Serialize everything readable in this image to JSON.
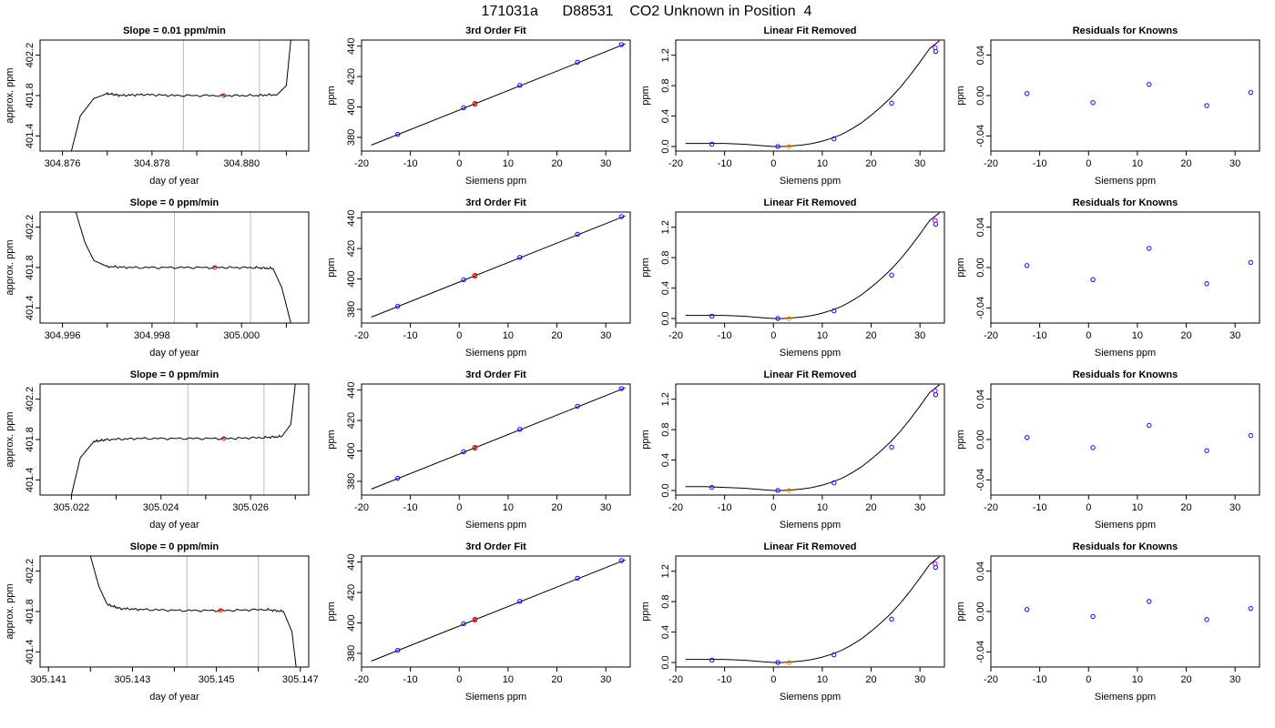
{
  "figure_title": "171031a      D88531    CO2 Unknown in Position  4",
  "colors": {
    "known": "#0000ff",
    "highlight": "#9900ff",
    "unknown": "#ff0000",
    "unknown_lin": "#ff8800",
    "curve": "#000000",
    "vline": "#bbbbbb"
  },
  "chart_data": [
    {
      "type": "line",
      "panel": "trace",
      "row": 0,
      "title": "Slope =  0.01  ppm/min",
      "xlabel": "day of year",
      "ylabel": "approx. ppm",
      "xlim": [
        304.8755,
        304.8815
      ],
      "ylim": [
        401.25,
        402.35
      ],
      "xticks": [
        304.876,
        304.878,
        304.88
      ],
      "xtick_labels": [
        "304.876",
        "304.878",
        "304.880"
      ],
      "xminor": [
        304.877,
        304.879,
        304.881
      ],
      "yticks": [
        401.4,
        401.8,
        402.2
      ],
      "ytick_labels": [
        "401.4",
        "401.8",
        "402.2"
      ],
      "vlines": [
        304.8787,
        304.8804
      ],
      "point": {
        "x": 304.8796,
        "y": 401.8
      },
      "x": [
        304.8762,
        304.8764,
        304.8767,
        304.877,
        304.8773,
        304.8778,
        304.8785,
        304.8795,
        304.8803,
        304.8808,
        304.881,
        304.8811
      ],
      "y": [
        401.25,
        401.6,
        401.77,
        401.82,
        401.8,
        401.81,
        401.8,
        401.8,
        401.8,
        401.81,
        401.9,
        402.35
      ]
    },
    {
      "type": "line",
      "panel": "trace",
      "row": 1,
      "title": "Slope =  0  ppm/min",
      "xlabel": "day of year",
      "ylabel": "approx. ppm",
      "xlim": [
        304.9955,
        305.0015
      ],
      "ylim": [
        401.25,
        402.35
      ],
      "xticks": [
        304.996,
        304.998,
        305.0
      ],
      "xtick_labels": [
        "304.996",
        "304.998",
        "305.000"
      ],
      "xminor": [
        304.997,
        304.999,
        305.001
      ],
      "yticks": [
        401.4,
        401.8,
        402.2
      ],
      "ytick_labels": [
        "401.4",
        "401.8",
        "402.2"
      ],
      "vlines": [
        304.9985,
        305.0002
      ],
      "point": {
        "x": 304.9994,
        "y": 401.8
      },
      "x": [
        304.9963,
        304.9965,
        304.9967,
        304.997,
        304.9975,
        304.9985,
        304.9995,
        305.0003,
        305.0007,
        305.0009,
        305.0011
      ],
      "y": [
        402.35,
        402.05,
        401.87,
        401.81,
        401.8,
        401.8,
        401.8,
        401.8,
        401.79,
        401.6,
        401.25
      ]
    },
    {
      "type": "line",
      "panel": "trace",
      "row": 2,
      "title": "Slope =  0  ppm/min",
      "xlabel": "day of year",
      "ylabel": "approx. ppm",
      "xlim": [
        305.0213,
        305.0273
      ],
      "ylim": [
        401.25,
        402.35
      ],
      "xticks": [
        305.022,
        305.024,
        305.026
      ],
      "xtick_labels": [
        "305.022",
        "305.024",
        "305.026"
      ],
      "xminor": [
        305.023,
        305.025,
        305.027
      ],
      "yticks": [
        401.4,
        401.8,
        402.2
      ],
      "ytick_labels": [
        "401.4",
        "401.8",
        "402.2"
      ],
      "vlines": [
        305.0246,
        305.0263
      ],
      "point": {
        "x": 305.0254,
        "y": 401.81
      },
      "x": [
        305.022,
        305.0222,
        305.0225,
        305.0228,
        305.0235,
        305.0245,
        305.0255,
        305.0263,
        305.0267,
        305.0269,
        305.027
      ],
      "y": [
        401.25,
        401.62,
        401.78,
        401.8,
        401.81,
        401.81,
        401.81,
        401.82,
        401.83,
        401.95,
        402.35
      ]
    },
    {
      "type": "line",
      "panel": "trace",
      "row": 3,
      "title": "Slope =  0  ppm/min",
      "xlabel": "day of year",
      "ylabel": "approx. ppm",
      "xlim": [
        305.1408,
        305.1472
      ],
      "ylim": [
        401.25,
        402.35
      ],
      "xticks": [
        305.141,
        305.143,
        305.145,
        305.147
      ],
      "xtick_labels": [
        "305.141",
        "305.143",
        "305.145",
        "305.147"
      ],
      "xminor": [
        305.142,
        305.144,
        305.146
      ],
      "yticks": [
        401.4,
        401.8,
        402.2
      ],
      "ytick_labels": [
        "401.4",
        "401.8",
        "402.2"
      ],
      "vlines": [
        305.1443,
        305.146
      ],
      "point": {
        "x": 305.1451,
        "y": 401.81
      },
      "x": [
        305.142,
        305.1422,
        305.1424,
        305.1427,
        305.1432,
        305.1442,
        305.1452,
        305.1462,
        305.1466,
        305.1468,
        305.1469
      ],
      "y": [
        402.35,
        402.05,
        401.87,
        401.83,
        401.82,
        401.81,
        401.81,
        401.82,
        401.8,
        401.6,
        401.25
      ]
    },
    {
      "type": "scatter",
      "panel": "fit3",
      "row": 0,
      "title": "3rd Order Fit",
      "xlabel": "Siemens ppm",
      "ylabel": "ppm",
      "xlim": [
        -20,
        35
      ],
      "ylim": [
        371,
        444
      ],
      "xticks": [
        -20,
        -10,
        0,
        10,
        20,
        30
      ],
      "yticks": [
        380,
        400,
        420,
        440
      ],
      "line": {
        "x": [
          -18,
          34
        ],
        "y": [
          374.9,
          441.5
        ]
      },
      "known": {
        "x": [
          -12.6,
          0.9,
          12.4,
          24.2,
          33.2
        ],
        "y": [
          382.0,
          399.5,
          414.2,
          429.4,
          441.0
        ]
      },
      "unknown": {
        "x": [
          3.2,
          3.2
        ],
        "y": [
          402.4,
          401.8
        ]
      }
    },
    {
      "type": "scatter",
      "panel": "fit3",
      "row": 1,
      "title": "3rd Order Fit",
      "xlabel": "Siemens ppm",
      "ylabel": "ppm",
      "xlim": [
        -20,
        35
      ],
      "ylim": [
        371,
        444
      ],
      "xticks": [
        -20,
        -10,
        0,
        10,
        20,
        30
      ],
      "yticks": [
        380,
        400,
        420,
        440
      ],
      "line": {
        "x": [
          -18,
          34
        ],
        "y": [
          374.9,
          441.5
        ]
      },
      "known": {
        "x": [
          -12.6,
          0.9,
          12.4,
          24.2,
          33.2
        ],
        "y": [
          382.0,
          399.5,
          414.2,
          429.4,
          441.0
        ]
      },
      "unknown": {
        "x": [
          3.2,
          3.2
        ],
        "y": [
          402.4,
          401.8
        ]
      }
    },
    {
      "type": "scatter",
      "panel": "fit3",
      "row": 2,
      "title": "3rd Order Fit",
      "xlabel": "Siemens ppm",
      "ylabel": "ppm",
      "xlim": [
        -20,
        35
      ],
      "ylim": [
        371,
        444
      ],
      "xticks": [
        -20,
        -10,
        0,
        10,
        20,
        30
      ],
      "yticks": [
        380,
        400,
        420,
        440
      ],
      "line": {
        "x": [
          -18,
          34
        ],
        "y": [
          374.9,
          441.5
        ]
      },
      "known": {
        "x": [
          -12.6,
          0.9,
          12.4,
          24.2,
          33.2
        ],
        "y": [
          382.0,
          399.5,
          414.2,
          429.4,
          441.0
        ]
      },
      "unknown": {
        "x": [
          3.2,
          3.2
        ],
        "y": [
          402.4,
          401.8
        ]
      }
    },
    {
      "type": "scatter",
      "panel": "fit3",
      "row": 3,
      "title": "3rd Order Fit",
      "xlabel": "Siemens ppm",
      "ylabel": "ppm",
      "xlim": [
        -20,
        35
      ],
      "ylim": [
        371,
        444
      ],
      "xticks": [
        -20,
        -10,
        0,
        10,
        20,
        30
      ],
      "yticks": [
        380,
        400,
        420,
        440
      ],
      "line": {
        "x": [
          -18,
          34
        ],
        "y": [
          374.9,
          441.5
        ]
      },
      "known": {
        "x": [
          -12.6,
          0.9,
          12.4,
          24.2,
          33.2
        ],
        "y": [
          382.0,
          399.5,
          414.2,
          429.4,
          441.0
        ]
      },
      "unknown": {
        "x": [
          3.2,
          3.2
        ],
        "y": [
          402.4,
          401.8
        ]
      }
    },
    {
      "type": "scatter",
      "panel": "linres",
      "row": 0,
      "title": "Linear Fit Removed",
      "xlabel": "Siemens ppm",
      "ylabel": "ppm",
      "xlim": [
        -20,
        35
      ],
      "ylim": [
        -0.06,
        1.4
      ],
      "xticks": [
        -20,
        -10,
        0,
        10,
        20,
        30
      ],
      "yticks": [
        0.0,
        0.4,
        0.8,
        1.2
      ],
      "ytick_labels": [
        "0.0",
        "0.4",
        "0.8",
        "1.2"
      ],
      "curve": {
        "x": [
          -18,
          -14,
          -10,
          -6,
          -2,
          0,
          2,
          4,
          6,
          8,
          10,
          12,
          14,
          16,
          18,
          20,
          22,
          24,
          26,
          28,
          30,
          32,
          34
        ],
        "y": [
          0.04,
          0.04,
          0.04,
          0.03,
          0.01,
          0.0,
          0.0,
          0.01,
          0.02,
          0.04,
          0.07,
          0.11,
          0.16,
          0.23,
          0.31,
          0.41,
          0.52,
          0.64,
          0.78,
          0.94,
          1.11,
          1.29,
          1.39
        ]
      },
      "known": {
        "x": [
          -12.6,
          0.9,
          12.4,
          24.2,
          33.2
        ],
        "y": [
          0.03,
          0.0,
          0.1,
          0.57,
          1.25
        ]
      },
      "highlight": {
        "x": [
          33.1
        ],
        "y": [
          1.3
        ]
      },
      "unknown": {
        "x": [
          3.2
        ],
        "y": [
          0.0
        ]
      }
    },
    {
      "type": "scatter",
      "panel": "linres",
      "row": 1,
      "title": "Linear Fit Removed",
      "xlabel": "Siemens ppm",
      "ylabel": "ppm",
      "xlim": [
        -20,
        35
      ],
      "ylim": [
        -0.06,
        1.4
      ],
      "xticks": [
        -20,
        -10,
        0,
        10,
        20,
        30
      ],
      "yticks": [
        0.0,
        0.4,
        0.8,
        1.2
      ],
      "ytick_labels": [
        "0.0",
        "0.4",
        "0.8",
        "1.2"
      ],
      "curve": {
        "x": [
          -18,
          -14,
          -10,
          -6,
          -2,
          0,
          2,
          4,
          6,
          8,
          10,
          12,
          14,
          16,
          18,
          20,
          22,
          24,
          26,
          28,
          30,
          32,
          34
        ],
        "y": [
          0.04,
          0.04,
          0.04,
          0.03,
          0.01,
          0.0,
          0.0,
          0.01,
          0.02,
          0.04,
          0.07,
          0.11,
          0.16,
          0.23,
          0.31,
          0.41,
          0.52,
          0.64,
          0.78,
          0.94,
          1.11,
          1.29,
          1.39
        ]
      },
      "known": {
        "x": [
          -12.6,
          0.9,
          12.4,
          24.2,
          33.2
        ],
        "y": [
          0.03,
          0.0,
          0.1,
          0.57,
          1.24
        ]
      },
      "highlight": {
        "x": [
          33.1
        ],
        "y": [
          1.29
        ]
      },
      "unknown": {
        "x": [
          3.2
        ],
        "y": [
          0.0
        ]
      }
    },
    {
      "type": "scatter",
      "panel": "linres",
      "row": 2,
      "title": "Linear Fit Removed",
      "xlabel": "Siemens ppm",
      "ylabel": "ppm",
      "xlim": [
        -20,
        35
      ],
      "ylim": [
        -0.06,
        1.4
      ],
      "xticks": [
        -20,
        -10,
        0,
        10,
        20,
        30
      ],
      "yticks": [
        0.0,
        0.4,
        0.8,
        1.2
      ],
      "ytick_labels": [
        "0.0",
        "0.4",
        "0.8",
        "1.2"
      ],
      "curve": {
        "x": [
          -18,
          -14,
          -10,
          -6,
          -2,
          0,
          2,
          4,
          6,
          8,
          10,
          12,
          14,
          16,
          18,
          20,
          22,
          24,
          26,
          28,
          30,
          32,
          34
        ],
        "y": [
          0.05,
          0.05,
          0.04,
          0.03,
          0.01,
          0.0,
          0.0,
          0.01,
          0.02,
          0.04,
          0.07,
          0.11,
          0.16,
          0.23,
          0.31,
          0.41,
          0.52,
          0.64,
          0.78,
          0.94,
          1.11,
          1.29,
          1.39
        ]
      },
      "known": {
        "x": [
          -12.6,
          0.9,
          12.4,
          24.2,
          33.2
        ],
        "y": [
          0.04,
          0.0,
          0.1,
          0.57,
          1.26
        ]
      },
      "highlight": {
        "x": [
          33.1
        ],
        "y": [
          1.31
        ]
      },
      "unknown": {
        "x": [
          3.2
        ],
        "y": [
          0.0
        ]
      }
    },
    {
      "type": "scatter",
      "panel": "linres",
      "row": 3,
      "title": "Linear Fit Removed",
      "xlabel": "Siemens ppm",
      "ylabel": "ppm",
      "xlim": [
        -20,
        35
      ],
      "ylim": [
        -0.06,
        1.4
      ],
      "xticks": [
        -20,
        -10,
        0,
        10,
        20,
        30
      ],
      "yticks": [
        0.0,
        0.4,
        0.8,
        1.2
      ],
      "ytick_labels": [
        "0.0",
        "0.4",
        "0.8",
        "1.2"
      ],
      "curve": {
        "x": [
          -18,
          -14,
          -10,
          -6,
          -2,
          0,
          2,
          4,
          6,
          8,
          10,
          12,
          14,
          16,
          18,
          20,
          22,
          24,
          26,
          28,
          30,
          32,
          34
        ],
        "y": [
          0.04,
          0.04,
          0.04,
          0.03,
          0.01,
          0.0,
          0.0,
          0.01,
          0.02,
          0.04,
          0.07,
          0.11,
          0.16,
          0.23,
          0.31,
          0.41,
          0.52,
          0.64,
          0.78,
          0.94,
          1.11,
          1.29,
          1.39
        ]
      },
      "known": {
        "x": [
          -12.6,
          0.9,
          12.4,
          24.2,
          33.2
        ],
        "y": [
          0.03,
          0.0,
          0.1,
          0.57,
          1.25
        ]
      },
      "highlight": {
        "x": [
          33.1
        ],
        "y": [
          1.3
        ]
      },
      "unknown": {
        "x": [
          3.2
        ],
        "y": [
          0.0
        ]
      }
    },
    {
      "type": "scatter",
      "panel": "resid",
      "row": 0,
      "title": "Residuals for Knowns",
      "xlabel": "Siemens ppm",
      "ylabel": "ppm",
      "xlim": [
        -20,
        35
      ],
      "ylim": [
        -0.055,
        0.055
      ],
      "xticks": [
        -20,
        -10,
        0,
        10,
        20,
        30
      ],
      "yticks": [
        -0.04,
        0.0,
        0.04
      ],
      "ytick_labels": [
        "-0.04",
        "0.00",
        "0.04"
      ],
      "known": {
        "x": [
          -12.6,
          0.9,
          12.4,
          24.2,
          33.2
        ],
        "y": [
          0.002,
          -0.007,
          0.011,
          -0.01,
          0.003
        ]
      }
    },
    {
      "type": "scatter",
      "panel": "resid",
      "row": 1,
      "title": "Residuals for Knowns",
      "xlabel": "Siemens ppm",
      "ylabel": "ppm",
      "xlim": [
        -20,
        35
      ],
      "ylim": [
        -0.055,
        0.055
      ],
      "xticks": [
        -20,
        -10,
        0,
        10,
        20,
        30
      ],
      "yticks": [
        -0.04,
        0.0,
        0.04
      ],
      "ytick_labels": [
        "-0.04",
        "0.00",
        "0.04"
      ],
      "known": {
        "x": [
          -12.6,
          0.9,
          12.4,
          24.2,
          33.2
        ],
        "y": [
          0.002,
          -0.012,
          0.019,
          -0.016,
          0.005
        ]
      }
    },
    {
      "type": "scatter",
      "panel": "resid",
      "row": 2,
      "title": "Residuals for Knowns",
      "xlabel": "Siemens ppm",
      "ylabel": "ppm",
      "xlim": [
        -20,
        35
      ],
      "ylim": [
        -0.055,
        0.055
      ],
      "xticks": [
        -20,
        -10,
        0,
        10,
        20,
        30
      ],
      "yticks": [
        -0.04,
        0.0,
        0.04
      ],
      "ytick_labels": [
        "-0.04",
        "0.00",
        "0.04"
      ],
      "known": {
        "x": [
          -12.6,
          0.9,
          12.4,
          24.2,
          33.2
        ],
        "y": [
          0.002,
          -0.008,
          0.014,
          -0.011,
          0.004
        ]
      }
    },
    {
      "type": "scatter",
      "panel": "resid",
      "row": 3,
      "title": "Residuals for Knowns",
      "xlabel": "Siemens ppm",
      "ylabel": "ppm",
      "xlim": [
        -20,
        35
      ],
      "ylim": [
        -0.055,
        0.055
      ],
      "xticks": [
        -20,
        -10,
        0,
        10,
        20,
        30
      ],
      "yticks": [
        -0.04,
        0.0,
        0.04
      ],
      "ytick_labels": [
        "-0.04",
        "0.00",
        "0.04"
      ],
      "known": {
        "x": [
          -12.6,
          0.9,
          12.4,
          24.2,
          33.2
        ],
        "y": [
          0.002,
          -0.005,
          0.01,
          -0.008,
          0.003
        ]
      }
    }
  ]
}
